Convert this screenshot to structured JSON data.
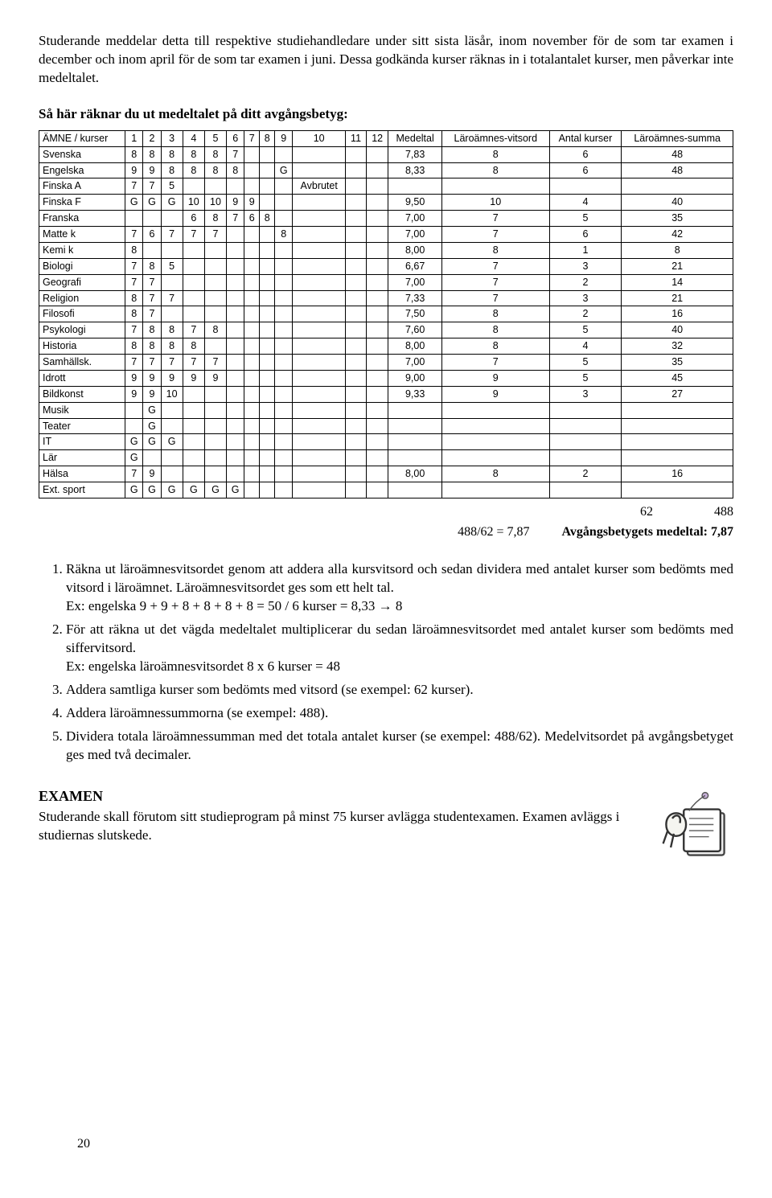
{
  "intro": "Studerande meddelar detta till respektive studiehandledare under sitt sista läsår, inom november för de som tar examen i december och inom april för de som tar examen i juni. Dessa godkända kurser räknas in i totalantalet kurser, men påverkar inte medeltalet.",
  "table_title": "Så här räknar du ut medeltalet på ditt avgångsbetyg:",
  "headers": {
    "subject": "ÄMNE / kurser",
    "cols": [
      "1",
      "2",
      "3",
      "4",
      "5",
      "6",
      "7",
      "8",
      "9",
      "10",
      "11",
      "12"
    ],
    "medeltal": "Medeltal",
    "vitsord": "Läroämnes-vitsord",
    "antal": "Antal kurser",
    "summa": "Läroämnes-summa"
  },
  "rows": [
    {
      "s": "Svenska",
      "c": [
        "8",
        "8",
        "8",
        "8",
        "8",
        "7",
        "",
        "",
        "",
        "",
        "",
        ""
      ],
      "m": "7,83",
      "v": "8",
      "a": "6",
      "su": "48"
    },
    {
      "s": "Engelska",
      "c": [
        "9",
        "9",
        "8",
        "8",
        "8",
        "8",
        "",
        "",
        "G",
        "",
        "",
        ""
      ],
      "m": "8,33",
      "v": "8",
      "a": "6",
      "su": "48"
    },
    {
      "s": "Finska A",
      "c": [
        "7",
        "7",
        "5",
        "",
        "",
        "",
        "",
        "",
        "",
        "Avbrutet",
        "",
        ""
      ],
      "m": "",
      "v": "",
      "a": "",
      "su": ""
    },
    {
      "s": "Finska F",
      "c": [
        "G",
        "G",
        "G",
        "10",
        "10",
        "9",
        "9",
        "",
        "",
        "",
        "",
        ""
      ],
      "m": "9,50",
      "v": "10",
      "a": "4",
      "su": "40"
    },
    {
      "s": "Franska",
      "c": [
        "",
        "",
        "",
        "6",
        "8",
        "7",
        "6",
        "8",
        "",
        "",
        "",
        ""
      ],
      "m": "7,00",
      "v": "7",
      "a": "5",
      "su": "35"
    },
    {
      "s": "Matte k",
      "c": [
        "7",
        "6",
        "7",
        "7",
        "7",
        "",
        "",
        "",
        "8",
        "",
        "",
        ""
      ],
      "m": "7,00",
      "v": "7",
      "a": "6",
      "su": "42"
    },
    {
      "s": "Kemi k",
      "c": [
        "8",
        "",
        "",
        "",
        "",
        "",
        "",
        "",
        "",
        "",
        "",
        ""
      ],
      "m": "8,00",
      "v": "8",
      "a": "1",
      "su": "8"
    },
    {
      "s": "Biologi",
      "c": [
        "7",
        "8",
        "5",
        "",
        "",
        "",
        "",
        "",
        "",
        "",
        "",
        ""
      ],
      "m": "6,67",
      "v": "7",
      "a": "3",
      "su": "21"
    },
    {
      "s": "Geografi",
      "c": [
        "7",
        "7",
        "",
        "",
        "",
        "",
        "",
        "",
        "",
        "",
        "",
        ""
      ],
      "m": "7,00",
      "v": "7",
      "a": "2",
      "su": "14"
    },
    {
      "s": "Religion",
      "c": [
        "8",
        "7",
        "7",
        "",
        "",
        "",
        "",
        "",
        "",
        "",
        "",
        ""
      ],
      "m": "7,33",
      "v": "7",
      "a": "3",
      "su": "21"
    },
    {
      "s": "Filosofi",
      "c": [
        "8",
        "7",
        "",
        "",
        "",
        "",
        "",
        "",
        "",
        "",
        "",
        ""
      ],
      "m": "7,50",
      "v": "8",
      "a": "2",
      "su": "16"
    },
    {
      "s": "Psykologi",
      "c": [
        "7",
        "8",
        "8",
        "7",
        "8",
        "",
        "",
        "",
        "",
        "",
        "",
        ""
      ],
      "m": "7,60",
      "v": "8",
      "a": "5",
      "su": "40"
    },
    {
      "s": "Historia",
      "c": [
        "8",
        "8",
        "8",
        "8",
        "",
        "",
        "",
        "",
        "",
        "",
        "",
        ""
      ],
      "m": "8,00",
      "v": "8",
      "a": "4",
      "su": "32"
    },
    {
      "s": "Samhällsk.",
      "c": [
        "7",
        "7",
        "7",
        "7",
        "7",
        "",
        "",
        "",
        "",
        "",
        "",
        ""
      ],
      "m": "7,00",
      "v": "7",
      "a": "5",
      "su": "35"
    },
    {
      "s": "Idrott",
      "c": [
        "9",
        "9",
        "9",
        "9",
        "9",
        "",
        "",
        "",
        "",
        "",
        "",
        ""
      ],
      "m": "9,00",
      "v": "9",
      "a": "5",
      "su": "45"
    },
    {
      "s": "Bildkonst",
      "c": [
        "9",
        "9",
        "10",
        "",
        "",
        "",
        "",
        "",
        "",
        "",
        "",
        ""
      ],
      "m": "9,33",
      "v": "9",
      "a": "3",
      "su": "27"
    },
    {
      "s": "Musik",
      "c": [
        "",
        "G",
        "",
        "",
        "",
        "",
        "",
        "",
        "",
        "",
        "",
        ""
      ],
      "m": "",
      "v": "",
      "a": "",
      "su": ""
    },
    {
      "s": "Teater",
      "c": [
        "",
        "G",
        "",
        "",
        "",
        "",
        "",
        "",
        "",
        "",
        "",
        ""
      ],
      "m": "",
      "v": "",
      "a": "",
      "su": ""
    },
    {
      "s": "IT",
      "c": [
        "G",
        "G",
        "G",
        "",
        "",
        "",
        "",
        "",
        "",
        "",
        "",
        ""
      ],
      "m": "",
      "v": "",
      "a": "",
      "su": ""
    },
    {
      "s": "Lär",
      "c": [
        "G",
        "",
        "",
        "",
        "",
        "",
        "",
        "",
        "",
        "",
        "",
        ""
      ],
      "m": "",
      "v": "",
      "a": "",
      "su": ""
    },
    {
      "s": "Hälsa",
      "c": [
        "7",
        "9",
        "",
        "",
        "",
        "",
        "",
        "",
        "",
        "",
        "",
        ""
      ],
      "m": "8,00",
      "v": "8",
      "a": "2",
      "su": "16"
    },
    {
      "s": "Ext. sport",
      "c": [
        "G",
        "G",
        "G",
        "G",
        "G",
        "G",
        "",
        "",
        "",
        "",
        "",
        ""
      ],
      "m": "",
      "v": "",
      "a": "",
      "su": ""
    }
  ],
  "totals": {
    "antal": "62",
    "summa": "488"
  },
  "avg_eq": "488/62 = 7,87",
  "avg_label": "Avgångsbetygets medeltal: 7,87",
  "instructions": [
    {
      "main": "Räkna ut läroämnesvitsordet genom att addera alla kursvitsord och sedan dividera med antalet kurser som bedömts med vitsord i läroämnet. Läroämnesvitsordet ges som ett helt tal.",
      "ex": "Ex:  engelska  9 + 9 + 8 + 8 + 8 + 8  = 50 / 6 kurser = 8,33 → 8"
    },
    {
      "main": "För att räkna ut det vägda medeltalet multiplicerar du sedan läroämnesvitsordet med antalet kurser som bedömts med siffervitsord.",
      "ex": "Ex: engelska   läroämnesvitsordet 8 x 6 kurser = 48"
    },
    {
      "main": "Addera samtliga kurser som bedömts med vitsord (se exempel: 62 kurser)."
    },
    {
      "main": "Addera läroämnessummorna (se exempel: 488)."
    },
    {
      "main": "Dividera totala läroämnessumman med det totala antalet kurser (se exempel: 488/62). Medelvitsordet på avgångsbetyget ges med två decimaler."
    }
  ],
  "examen": {
    "title": "EXAMEN",
    "body": "Studerande skall förutom sitt studieprogram på minst 75 kurser avlägga studentexamen. Examen avläggs i studiernas slutskede."
  },
  "page": "20"
}
